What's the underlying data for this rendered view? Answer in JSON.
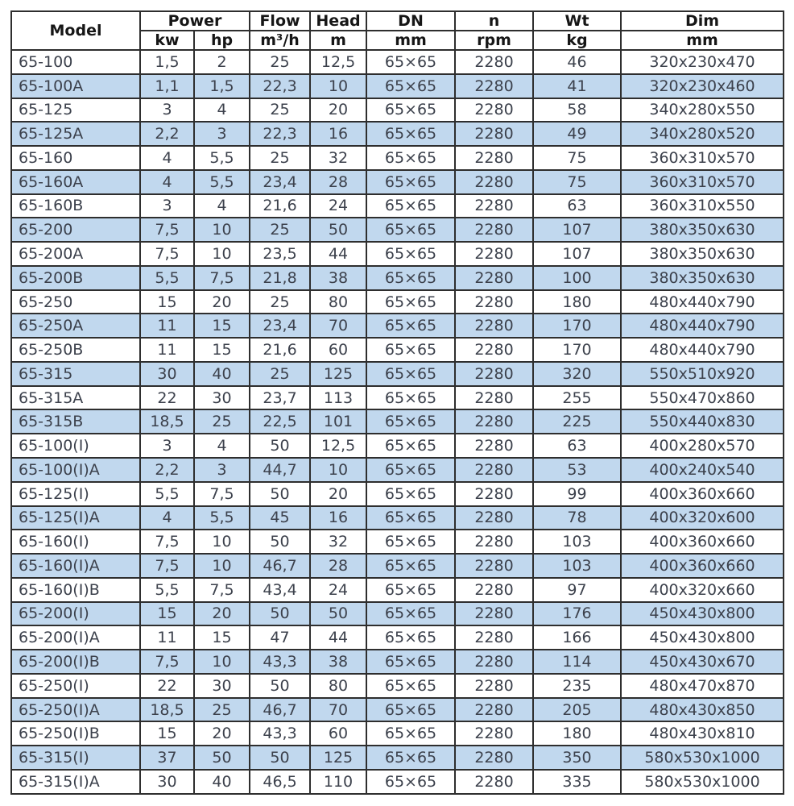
{
  "colors": {
    "row_alt_background": "#c1d8ee",
    "data_text": "#3c414c",
    "header_text": "#161616",
    "border": "#2e2e2e",
    "background": "#ffffff"
  },
  "table": {
    "header": {
      "model": "Model",
      "power": "Power",
      "flow": "Flow",
      "head": "Head",
      "dn": "DN",
      "n": "n",
      "wt": "Wt",
      "dim": "Dim",
      "units": {
        "kw": "kw",
        "hp": "hp",
        "flow": "m³/h",
        "head": "m",
        "dn": "mm",
        "n": "rpm",
        "wt": "kg",
        "dim": "mm"
      }
    },
    "columns": [
      "Model",
      "Power kw",
      "Power hp",
      "Flow m³/h",
      "Head m",
      "DN mm",
      "n rpm",
      "Wt kg",
      "Dim mm"
    ],
    "rows": [
      [
        "65-100",
        "1,5",
        "2",
        "25",
        "12,5",
        "65×65",
        "2280",
        "46",
        "320x230x470"
      ],
      [
        "65-100A",
        "1,1",
        "1,5",
        "22,3",
        "10",
        "65×65",
        "2280",
        "41",
        "320x230x460"
      ],
      [
        "65-125",
        "3",
        "4",
        "25",
        "20",
        "65×65",
        "2280",
        "58",
        "340x280x550"
      ],
      [
        "65-125A",
        "2,2",
        "3",
        "22,3",
        "16",
        "65×65",
        "2280",
        "49",
        "340x280x520"
      ],
      [
        "65-160",
        "4",
        "5,5",
        "25",
        "32",
        "65×65",
        "2280",
        "75",
        "360x310x570"
      ],
      [
        "65-160A",
        "4",
        "5,5",
        "23,4",
        "28",
        "65×65",
        "2280",
        "75",
        "360x310x570"
      ],
      [
        "65-160B",
        "3",
        "4",
        "21,6",
        "24",
        "65×65",
        "2280",
        "63",
        "360x310x550"
      ],
      [
        "65-200",
        "7,5",
        "10",
        "25",
        "50",
        "65×65",
        "2280",
        "107",
        "380x350x630"
      ],
      [
        "65-200A",
        "7,5",
        "10",
        "23,5",
        "44",
        "65×65",
        "2280",
        "107",
        "380x350x630"
      ],
      [
        "65-200B",
        "5,5",
        "7,5",
        "21,8",
        "38",
        "65×65",
        "2280",
        "100",
        "380x350x630"
      ],
      [
        "65-250",
        "15",
        "20",
        "25",
        "80",
        "65×65",
        "2280",
        "180",
        "480x440x790"
      ],
      [
        "65-250A",
        "11",
        "15",
        "23,4",
        "70",
        "65×65",
        "2280",
        "170",
        "480x440x790"
      ],
      [
        "65-250B",
        "11",
        "15",
        "21,6",
        "60",
        "65×65",
        "2280",
        "170",
        "480x440x790"
      ],
      [
        "65-315",
        "30",
        "40",
        "25",
        "125",
        "65×65",
        "2280",
        "320",
        "550x510x920"
      ],
      [
        "65-315A",
        "22",
        "30",
        "23,7",
        "113",
        "65×65",
        "2280",
        "255",
        "550x470x860"
      ],
      [
        "65-315B",
        "18,5",
        "25",
        "22,5",
        "101",
        "65×65",
        "2280",
        "225",
        "550x440x830"
      ],
      [
        "65-100(I)",
        "3",
        "4",
        "50",
        "12,5",
        "65×65",
        "2280",
        "63",
        "400x280x570"
      ],
      [
        "65-100(I)A",
        "2,2",
        "3",
        "44,7",
        "10",
        "65×65",
        "2280",
        "53",
        "400x240x540"
      ],
      [
        "65-125(I)",
        "5,5",
        "7,5",
        "50",
        "20",
        "65×65",
        "2280",
        "99",
        "400x360x660"
      ],
      [
        "65-125(I)A",
        "4",
        "5,5",
        "45",
        "16",
        "65×65",
        "2280",
        "78",
        "400x320x600"
      ],
      [
        "65-160(I)",
        "7,5",
        "10",
        "50",
        "32",
        "65×65",
        "2280",
        "103",
        "400x360x660"
      ],
      [
        "65-160(I)A",
        "7,5",
        "10",
        "46,7",
        "28",
        "65×65",
        "2280",
        "103",
        "400x360x660"
      ],
      [
        "65-160(I)B",
        "5,5",
        "7,5",
        "43,4",
        "24",
        "65×65",
        "2280",
        "97",
        "400x320x660"
      ],
      [
        "65-200(I)",
        "15",
        "20",
        "50",
        "50",
        "65×65",
        "2280",
        "176",
        "450x430x800"
      ],
      [
        "65-200(I)A",
        "11",
        "15",
        "47",
        "44",
        "65×65",
        "2280",
        "166",
        "450x430x800"
      ],
      [
        "65-200(I)B",
        "7,5",
        "10",
        "43,3",
        "38",
        "65×65",
        "2280",
        "114",
        "450x430x670"
      ],
      [
        "65-250(I)",
        "22",
        "30",
        "50",
        "80",
        "65×65",
        "2280",
        "235",
        "480x470x870"
      ],
      [
        "65-250(I)A",
        "18,5",
        "25",
        "46,7",
        "70",
        "65×65",
        "2280",
        "205",
        "480x430x850"
      ],
      [
        "65-250(I)B",
        "15",
        "20",
        "43,3",
        "60",
        "65×65",
        "2280",
        "180",
        "480x430x810"
      ],
      [
        "65-315(I)",
        "37",
        "50",
        "50",
        "125",
        "65×65",
        "2280",
        "350",
        "580x530x1000"
      ],
      [
        "65-315(I)A",
        "30",
        "40",
        "46,5",
        "110",
        "65×65",
        "2280",
        "335",
        "580x530x1000"
      ]
    ]
  }
}
